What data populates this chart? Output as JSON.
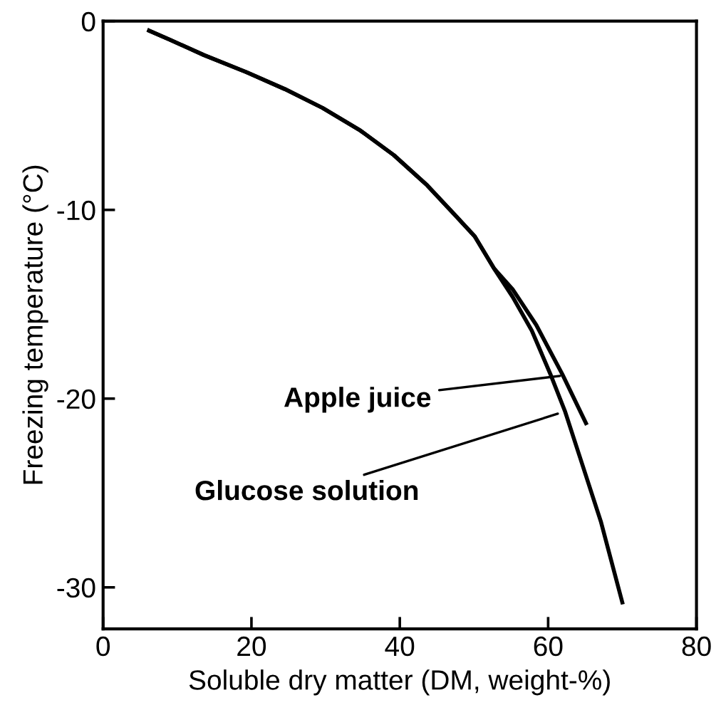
{
  "chart_data": {
    "type": "line",
    "xlabel": "Soluble dry matter (DM, weight-%)",
    "ylabel": "Freezing temperature (°C)",
    "xlim": [
      0,
      80
    ],
    "ylim": [
      -32.2,
      0
    ],
    "xticks": [
      0,
      20,
      40,
      60,
      80
    ],
    "yticks": [
      0,
      -10,
      -20,
      -30
    ],
    "grid": false,
    "legend": false,
    "marker": "none",
    "line_style": "solid",
    "series": [
      {
        "color": "#000000",
        "x": [
          6.2,
          9.1,
          13.6,
          19.3,
          24.5,
          29.6,
          34.7,
          39.2,
          43.7,
          47.5,
          50.1,
          52.7,
          55.2,
          58.4,
          61.9,
          65.1
        ],
        "values": [
          -0.5,
          -1.0,
          -1.8,
          -2.7,
          -3.6,
          -4.6,
          -5.8,
          -7.1,
          -8.7,
          -10.3,
          -11.4,
          -13.1,
          -14.2,
          -16.1,
          -18.7,
          -21.3
        ]
      },
      {
        "color": "#000000",
        "x": [
          6.2,
          9.1,
          13.6,
          19.3,
          24.5,
          29.6,
          34.7,
          39.2,
          43.7,
          47.5,
          50.1,
          52.7,
          55.2,
          57.8,
          60.3,
          62.3,
          64.2,
          67.1,
          70.0
        ],
        "values": [
          -0.5,
          -1.0,
          -1.8,
          -2.7,
          -3.6,
          -4.6,
          -5.8,
          -7.1,
          -8.7,
          -10.3,
          -11.4,
          -13.1,
          -14.6,
          -16.4,
          -18.7,
          -20.7,
          -23.0,
          -26.5,
          -30.8
        ]
      }
    ],
    "annotations": [
      {
        "text": "Apple juice",
        "x": 61.6,
        "y": -18.8
      },
      {
        "text": "Glucose solution",
        "x": 61.3,
        "y": -20.8
      }
    ]
  }
}
